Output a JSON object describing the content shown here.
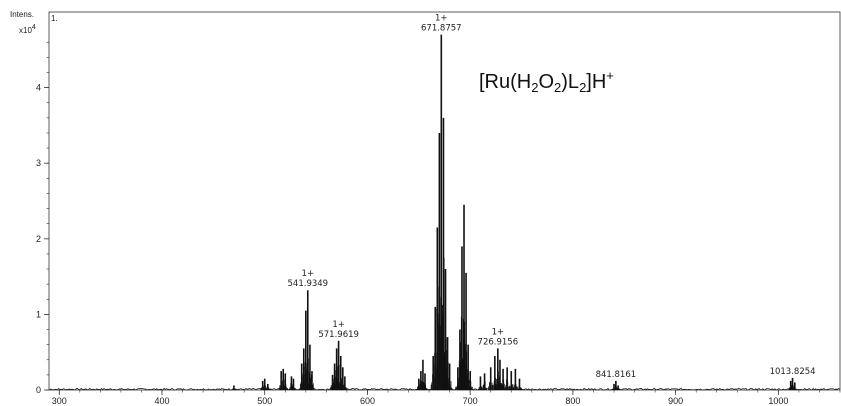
{
  "chart_data": {
    "type": "line",
    "title": "",
    "ylabel": "Intens.",
    "yscale_label": "x10",
    "yscale_exp": "4",
    "trace_label": "1.",
    "xlabel": "",
    "xlim": [
      290,
      1060
    ],
    "ylim": [
      0,
      5.0
    ],
    "x_ticks": [
      "300",
      "400",
      "500",
      "600",
      "700",
      "800",
      "900",
      "1000"
    ],
    "y_ticks": [
      "0",
      "1",
      "2",
      "3",
      "4"
    ],
    "annotation": {
      "parts": [
        "[Ru(H",
        "2",
        "O",
        "2",
        ")L",
        "2",
        "]H",
        "+"
      ]
    },
    "peak_labels": [
      {
        "mz": 541.9349,
        "charge": "1+",
        "text": "541.9349"
      },
      {
        "mz": 571.9619,
        "charge": "1+",
        "text": "571.9619"
      },
      {
        "mz": 671.8757,
        "charge": "1+",
        "text": "671.8757"
      },
      {
        "mz": 726.9156,
        "charge": "1+",
        "text": "726.9156"
      },
      {
        "mz": 841.8161,
        "charge": "",
        "text": "841.8161"
      },
      {
        "mz": 1013.8254,
        "charge": "",
        "text": "1013.8254"
      }
    ],
    "series": [
      {
        "values": [
          [
            470,
            0.06
          ],
          [
            498,
            0.12
          ],
          [
            500,
            0.15
          ],
          [
            503,
            0.08
          ],
          [
            516,
            0.25
          ],
          [
            518,
            0.28
          ],
          [
            520,
            0.22
          ],
          [
            526,
            0.18
          ],
          [
            528,
            0.15
          ],
          [
            536,
            0.35
          ],
          [
            538,
            0.55
          ],
          [
            540,
            1.05
          ],
          [
            541.9,
            1.32
          ],
          [
            544,
            0.6
          ],
          [
            546,
            0.25
          ],
          [
            566,
            0.2
          ],
          [
            568,
            0.35
          ],
          [
            570,
            0.55
          ],
          [
            571.9,
            0.65
          ],
          [
            574,
            0.45
          ],
          [
            576,
            0.3
          ],
          [
            578,
            0.18
          ],
          [
            650,
            0.15
          ],
          [
            652,
            0.25
          ],
          [
            654,
            0.4
          ],
          [
            656,
            0.22
          ],
          [
            664,
            0.45
          ],
          [
            666,
            1.1
          ],
          [
            668,
            2.15
          ],
          [
            670,
            3.4
          ],
          [
            671.9,
            4.7
          ],
          [
            674,
            3.6
          ],
          [
            676,
            1.6
          ],
          [
            678,
            0.7
          ],
          [
            680,
            0.35
          ],
          [
            688,
            0.3
          ],
          [
            690,
            0.8
          ],
          [
            692,
            1.9
          ],
          [
            694,
            2.45
          ],
          [
            696,
            1.55
          ],
          [
            698,
            0.6
          ],
          [
            700,
            0.25
          ],
          [
            710,
            0.18
          ],
          [
            714,
            0.22
          ],
          [
            720,
            0.3
          ],
          [
            724,
            0.45
          ],
          [
            726.9,
            0.55
          ],
          [
            729,
            0.4
          ],
          [
            732,
            0.28
          ],
          [
            736,
            0.3
          ],
          [
            740,
            0.25
          ],
          [
            744,
            0.28
          ],
          [
            748,
            0.15
          ],
          [
            840,
            0.08
          ],
          [
            841.8,
            0.12
          ],
          [
            844,
            0.06
          ],
          [
            1012,
            0.12
          ],
          [
            1013.8,
            0.16
          ],
          [
            1016,
            0.1
          ]
        ]
      }
    ]
  }
}
